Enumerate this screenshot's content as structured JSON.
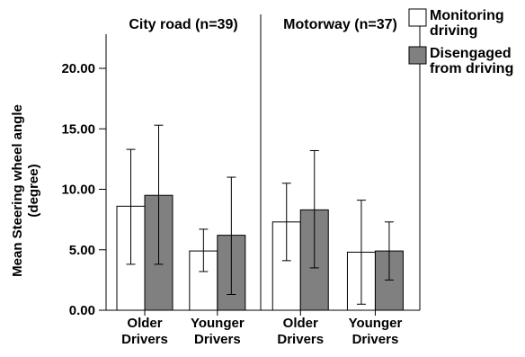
{
  "chart_data": {
    "type": "bar",
    "ylabel_lines": [
      "Mean Steering wheel angle",
      "(degree)"
    ],
    "ylim": [
      0,
      22.5
    ],
    "yticks": [
      "0.00",
      "5.00",
      "10.00",
      "15.00",
      "20.00"
    ],
    "ytick_values": [
      0,
      5,
      10,
      15,
      20
    ],
    "categories": [
      [
        "Older",
        "Drivers"
      ],
      [
        "Younger",
        "Drivers"
      ]
    ],
    "legend": {
      "placement": "top-right",
      "items": [
        {
          "label_lines": [
            "Monitoring",
            "driving"
          ],
          "color": "#ffffff"
        },
        {
          "label_lines": [
            "Disengaged",
            "from driving"
          ],
          "color": "#808080"
        }
      ]
    },
    "panels": [
      {
        "title": "City road (n=39)",
        "series": [
          {
            "name": "Monitoring driving",
            "values": [
              8.6,
              4.9
            ],
            "err_low": [
              3.8,
              3.2
            ],
            "err_high": [
              13.3,
              6.7
            ]
          },
          {
            "name": "Disengaged from driving",
            "values": [
              9.5,
              6.2
            ],
            "err_low": [
              3.8,
              1.3
            ],
            "err_high": [
              15.3,
              11.0
            ]
          }
        ]
      },
      {
        "title": "Motorway (n=37)",
        "series": [
          {
            "name": "Monitoring driving",
            "values": [
              7.3,
              4.8
            ],
            "err_low": [
              4.1,
              0.5
            ],
            "err_high": [
              10.5,
              9.1
            ]
          },
          {
            "name": "Disengaged from driving",
            "values": [
              8.3,
              4.9
            ],
            "err_low": [
              3.5,
              2.5
            ],
            "err_high": [
              13.2,
              7.3
            ]
          }
        ]
      }
    ]
  }
}
